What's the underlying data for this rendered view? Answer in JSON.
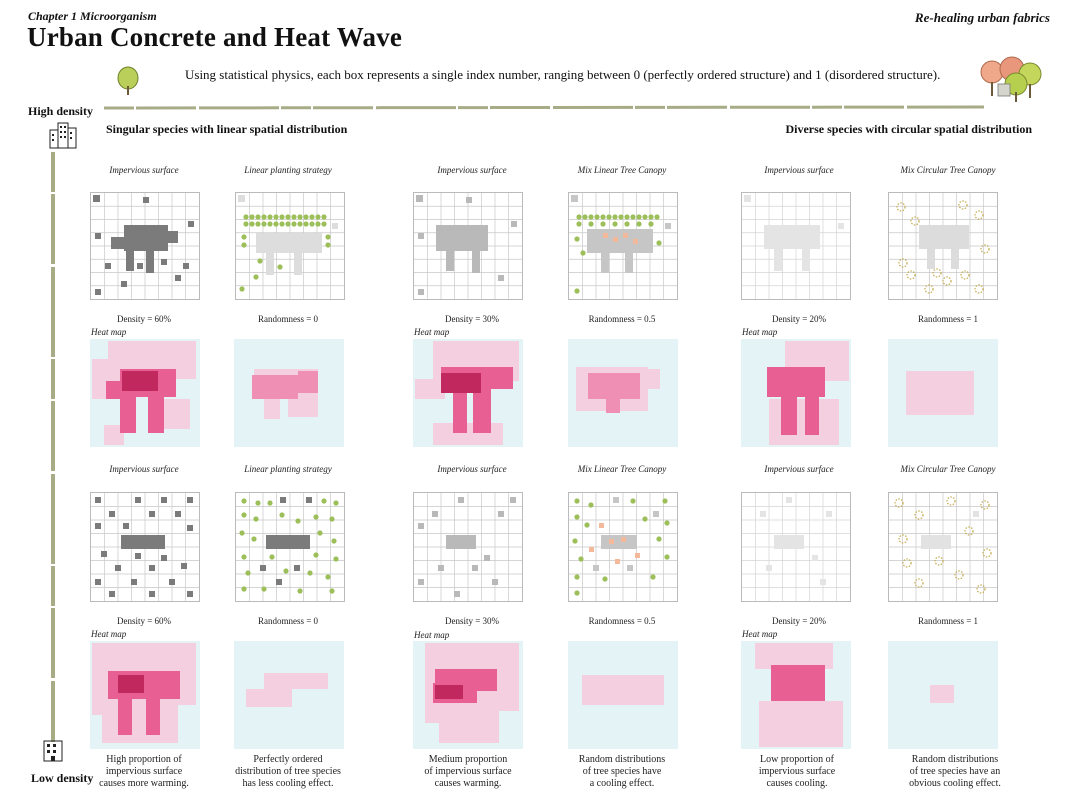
{
  "header": {
    "chapter": "Chapter 1 Microorganism",
    "title": "Urban Concrete and Heat Wave",
    "series": "Re-healing urban fabrics",
    "description": "Using statistical physics, each box represents a single index number, ranging between 0 (perfectly ordered structure) and 1 (disordered structure)."
  },
  "axis": {
    "high": "High density",
    "low": "Low density"
  },
  "sections": {
    "left": "Singular species with linear spatial distribution",
    "right": "Diverse species with circular spatial distribution"
  },
  "heat_label": "Heat map",
  "row1": {
    "captions": [
      "Impervious surface",
      "Linear planting strategy",
      "Impervious surface",
      "Mix Linear Tree Canopy",
      "Impervious surface",
      "Mix Circular Tree Canopy"
    ],
    "labels": [
      "Density = 60%",
      "Randomness = 0",
      "Density = 30%",
      "Randomness = 0.5",
      "Density = 20%",
      "Randomness = 1"
    ]
  },
  "row2": {
    "captions": [
      "Impervious surface",
      "Linear planting strategy",
      "Impervious surface",
      "Mix Linear Tree Canopy",
      "Impervious surface",
      "Mix Circular Tree Canopy"
    ],
    "labels": [
      "Density = 60%",
      "Randomness = 0",
      "Density = 30%",
      "Randomness = 0.5",
      "Density = 20%",
      "Randomness = 1"
    ]
  },
  "notes": [
    [
      "High proportion of",
      "impervious surface",
      "causes more warming."
    ],
    [
      "Perfectly ordered",
      "distribution of tree species",
      "has less cooling effect."
    ],
    [
      "Medium proportion",
      "of impervious surface",
      "causes warming."
    ],
    [
      "Random distributions",
      "of tree species have",
      "a cooling effect."
    ],
    [
      "Low proportion of",
      "impervious surface",
      "causes cooling."
    ],
    [
      "Random distributions",
      "of tree species have an",
      "obvious cooling effect."
    ]
  ],
  "colors": {
    "olive": "#a7ab86",
    "concrete": "#7b7b7b",
    "concrete_mid": "#b9b9b9",
    "concrete_light": "#dddddd",
    "tree": "#9cbf5a",
    "heat_bg": "#e4f3f6",
    "heat_low": "#f3cfe0",
    "heat_mid": "#ef8fb4",
    "heat_high": "#e85f93",
    "heat_max": "#c1285d"
  },
  "icons": [
    "tree-icon",
    "tree-cluster-icon",
    "high-density-building-icon",
    "low-density-building-icon"
  ]
}
